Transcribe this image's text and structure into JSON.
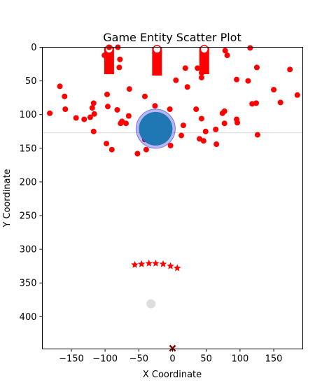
{
  "chart_data": {
    "type": "scatter",
    "title": "Game Entity Scatter Plot",
    "xlabel": "X Coordinate",
    "ylabel": "Y Coordinate",
    "xlim": [
      -193,
      193
    ],
    "ylim": [
      448,
      0
    ],
    "y_inverted": true,
    "x_ticks": [
      -150,
      -100,
      -50,
      0,
      50,
      100,
      150
    ],
    "x_tick_labels": [
      "−150",
      "−100",
      "−50",
      "0",
      "50",
      "100",
      "150"
    ],
    "y_ticks": [
      0,
      50,
      100,
      150,
      200,
      250,
      300,
      350,
      400
    ],
    "y_tick_labels": [
      "0",
      "50",
      "100",
      "150",
      "200",
      "250",
      "300",
      "350",
      "400"
    ],
    "grid": false,
    "horizontal_line": {
      "y": 127,
      "color": "#d9d9d9"
    },
    "colors": {
      "enemy": "#ff0000",
      "player": "#1f77b4",
      "player_ring": "#0000cd",
      "ghost": "#d3d3d3",
      "marker_x": "#8b0000"
    },
    "barriers": [
      {
        "x": -94,
        "y_top": 0,
        "y_bottom": 40,
        "width": 14
      },
      {
        "x": -23,
        "y_top": 0,
        "y_bottom": 42,
        "width": 14
      },
      {
        "x": 47,
        "y_top": 0,
        "y_bottom": 40,
        "width": 14
      }
    ],
    "barrier_caps": [
      {
        "x": -94,
        "y": 3
      },
      {
        "x": -23,
        "y": 3
      },
      {
        "x": 47,
        "y": 3
      }
    ],
    "player": {
      "x": -25,
      "y": 121,
      "size": 24,
      "ring": 28
    },
    "ghost": {
      "x": -32,
      "y": 381
    },
    "marker_x": {
      "x": 0,
      "y": 447
    },
    "stars": [
      {
        "x": -56,
        "y": 323
      },
      {
        "x": -46,
        "y": 322
      },
      {
        "x": -35,
        "y": 321
      },
      {
        "x": -25,
        "y": 321
      },
      {
        "x": -14,
        "y": 322
      },
      {
        "x": -3,
        "y": 325
      },
      {
        "x": 7,
        "y": 328
      }
    ],
    "enemies": [
      {
        "x": -94,
        "y": 0
      },
      {
        "x": -81,
        "y": 0
      },
      {
        "x": -101,
        "y": 12
      },
      {
        "x": -94,
        "y": 13
      },
      {
        "x": -78,
        "y": 18
      },
      {
        "x": -79,
        "y": 30
      },
      {
        "x": 115,
        "y": 1
      },
      {
        "x": 78,
        "y": 5
      },
      {
        "x": 81,
        "y": 12
      },
      {
        "x": 19,
        "y": 31
      },
      {
        "x": 37,
        "y": 31
      },
      {
        "x": 44,
        "y": 34
      },
      {
        "x": 43,
        "y": 38
      },
      {
        "x": 43,
        "y": 45
      },
      {
        "x": 125,
        "y": 30
      },
      {
        "x": 174,
        "y": 33
      },
      {
        "x": 5,
        "y": 49
      },
      {
        "x": 95,
        "y": 48
      },
      {
        "x": 112,
        "y": 50
      },
      {
        "x": -167,
        "y": 58
      },
      {
        "x": -160,
        "y": 73
      },
      {
        "x": -64,
        "y": 62
      },
      {
        "x": 22,
        "y": 59
      },
      {
        "x": 150,
        "y": 63
      },
      {
        "x": 185,
        "y": 71
      },
      {
        "x": -97,
        "y": 70
      },
      {
        "x": -41,
        "y": 73
      },
      {
        "x": 118,
        "y": 84
      },
      {
        "x": 124,
        "y": 83
      },
      {
        "x": 160,
        "y": 82
      },
      {
        "x": -117,
        "y": 83
      },
      {
        "x": -119,
        "y": 90
      },
      {
        "x": -96,
        "y": 88
      },
      {
        "x": -82,
        "y": 93
      },
      {
        "x": -26,
        "y": 87
      },
      {
        "x": -4,
        "y": 92
      },
      {
        "x": 35,
        "y": 92
      },
      {
        "x": 77,
        "y": 95
      },
      {
        "x": 74,
        "y": 98
      },
      {
        "x": -182,
        "y": 98
      },
      {
        "x": -159,
        "y": 92
      },
      {
        "x": -116,
        "y": 99
      },
      {
        "x": -122,
        "y": 104
      },
      {
        "x": -131,
        "y": 107
      },
      {
        "x": -143,
        "y": 105
      },
      {
        "x": -65,
        "y": 102
      },
      {
        "x": -75,
        "y": 110
      },
      {
        "x": -77,
        "y": 113
      },
      {
        "x": -69,
        "y": 113
      },
      {
        "x": -11,
        "y": 112
      },
      {
        "x": 16,
        "y": 116
      },
      {
        "x": 43,
        "y": 106
      },
      {
        "x": 77,
        "y": 113
      },
      {
        "x": 95,
        "y": 107
      },
      {
        "x": 96,
        "y": 112
      },
      {
        "x": -117,
        "y": 125
      },
      {
        "x": -7,
        "y": 125
      },
      {
        "x": 13,
        "y": 131
      },
      {
        "x": 49,
        "y": 125
      },
      {
        "x": 64,
        "y": 122
      },
      {
        "x": 126,
        "y": 130
      },
      {
        "x": -14,
        "y": 135
      },
      {
        "x": -41,
        "y": 137
      },
      {
        "x": 40,
        "y": 136
      },
      {
        "x": 46,
        "y": 139
      },
      {
        "x": 65,
        "y": 144
      },
      {
        "x": -98,
        "y": 143
      },
      {
        "x": -90,
        "y": 152
      },
      {
        "x": -39,
        "y": 152
      },
      {
        "x": -3,
        "y": 146
      },
      {
        "x": -52,
        "y": 158
      }
    ]
  }
}
